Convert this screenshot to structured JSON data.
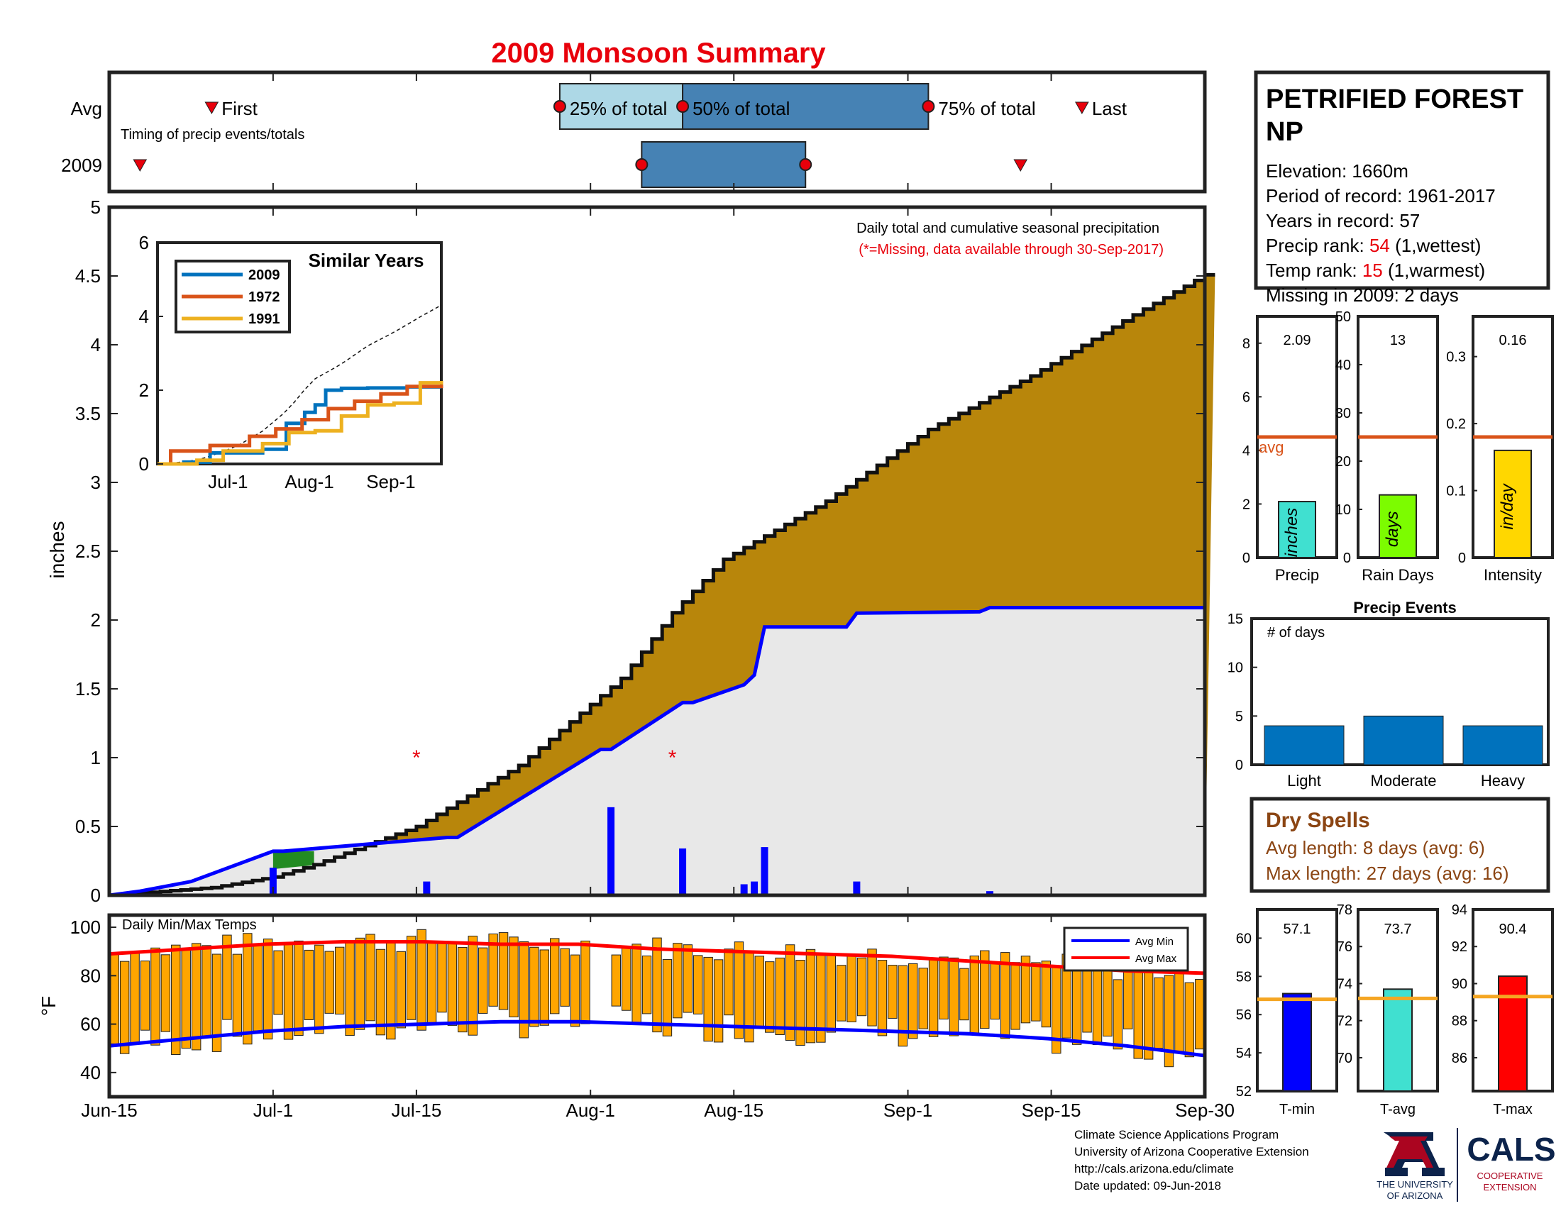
{
  "title": "2009 Monsoon Summary",
  "timing": {
    "rows": [
      "Avg",
      "2009"
    ],
    "caption": "Timing of precip events/totals",
    "avg": {
      "first": "Jun-25",
      "p25": "Jul-29",
      "p50": "Aug-10",
      "p75": "Sep-3",
      "last": "Sep-18"
    },
    "y2009": {
      "first": "Jun-18",
      "p25": "Aug-6",
      "p50": "Aug-6",
      "p75": "Aug-22",
      "last": "Sep-12"
    },
    "labels": {
      "first": "First",
      "p25": "25% of total",
      "p50": "50% of total",
      "p75": "75% of total",
      "last": "Last"
    }
  },
  "main": {
    "ylabel": "inches",
    "note": "Daily total and cumulative seasonal precipitation",
    "missing_note": "(*=Missing, data available through 30-Sep-2017)",
    "yticks": [
      "0",
      "0.5",
      "1",
      "1.5",
      "2",
      "2.5",
      "3",
      "3.5",
      "4",
      "4.5",
      "5"
    ]
  },
  "xticks": [
    "Jun-15",
    "Jul-1",
    "Jul-15",
    "Aug-1",
    "Aug-15",
    "Sep-1",
    "Sep-15",
    "Sep-30"
  ],
  "inset": {
    "title": "Similar Years",
    "legend": [
      "2009",
      "1972",
      "1991"
    ],
    "yticks": [
      "0",
      "2",
      "4",
      "6"
    ],
    "xticks": [
      "Jul-1",
      "Aug-1",
      "Sep-1"
    ]
  },
  "temps": {
    "title": "Daily Min/Max Temps",
    "ylabel": "°F",
    "yticks": [
      "40",
      "60",
      "80",
      "100"
    ],
    "legend": [
      "Avg Min",
      "Avg Max"
    ]
  },
  "station": {
    "name_line1": "PETRIFIED FOREST",
    "name_line2": "NP",
    "elevation": "Elevation: 1660m",
    "period": "Period of record: 1961-2017",
    "years": "Years in record: 57",
    "precip_rank_label": "Precip rank: ",
    "precip_rank_value": "54",
    "precip_rank_suffix": " (1,wettest)",
    "temp_rank_label": "Temp rank: ",
    "temp_rank_value": "15",
    "temp_rank_suffix": " (1,warmest)",
    "missing": "Missing in 2009: 2 days"
  },
  "bar_panels": {
    "precip": {
      "value": "2.09",
      "unit": "inches",
      "label": "Precip",
      "avg_label": "avg",
      "yticks": [
        "0",
        "2",
        "4",
        "6",
        "8"
      ]
    },
    "raindays": {
      "value": "13",
      "unit": "days",
      "label": "Rain Days",
      "yticks": [
        "0",
        "10",
        "20",
        "30",
        "40",
        "50"
      ]
    },
    "intensity": {
      "value": "0.16",
      "unit": "in/day",
      "label": "Intensity",
      "yticks": [
        "0",
        "0.1",
        "0.2",
        "0.3"
      ]
    }
  },
  "precip_events": {
    "title": "Precip Events",
    "ylabel": "# of days",
    "yticks": [
      "0",
      "5",
      "10",
      "15"
    ],
    "categories": [
      "Light",
      "Moderate",
      "Heavy"
    ]
  },
  "dry_spells": {
    "title": "Dry Spells",
    "avg_length": "Avg length: 8 days (avg: 6)",
    "max_length": "Max length: 27 days (avg: 16)"
  },
  "temp_panels": {
    "tmin": {
      "value": "57.1",
      "label": "T-min",
      "yticks": [
        "52",
        "54",
        "56",
        "58",
        "60"
      ]
    },
    "tavg": {
      "value": "73.7",
      "label": "T-avg",
      "yticks": [
        "70",
        "72",
        "74",
        "76",
        "78"
      ]
    },
    "tmax": {
      "value": "90.4",
      "label": "T-max",
      "yticks": [
        "86",
        "88",
        "90",
        "92",
        "94"
      ]
    }
  },
  "footer": {
    "line1": "Climate Science Applications Program",
    "line2": "University of Arizona Cooperative Extension",
    "line3": "http://cals.arizona.edu/climate",
    "line4": " Date updated: 09-Jun-2018",
    "ua_line1": "THE UNIVERSITY",
    "ua_line2": "OF ARIZONA",
    "cals": "CALS",
    "coop1": "COOPERATIVE",
    "coop2": "EXTENSION"
  },
  "colors": {
    "title": "#e8000b",
    "box_light": "#add8e6",
    "box_dark": "#4682b4",
    "cum_avg": "#b8860b",
    "cum_2009": "#0000ff",
    "grey_fill": "#e8e8e8",
    "excess": "#228b22",
    "temp_bar": "#ffa500",
    "avg_max": "#ff0000",
    "avg_min": "#0000ff",
    "avg_line": "#d95319",
    "precip_bar": "#40e0d0",
    "rain_bar": "#7cfc00",
    "intensity_bar": "#ffd700",
    "event_bar": "#0072bd",
    "dry_spell": "#8b4513",
    "tmin_bar": "#0000ff",
    "tavg_bar": "#40e0d0",
    "tmax_bar": "#ff0000",
    "temp_avg_line": "#f5a623"
  },
  "chart_data": [
    {
      "type": "area",
      "panel": "cumulative precipitation",
      "x_start": "Jun-15",
      "x_end": "Sep-30",
      "ylim": [
        0,
        5
      ],
      "series": [
        {
          "name": "Avg cumulative",
          "x": [
            0,
            10,
            16,
            20,
            30,
            40,
            50,
            55,
            60,
            70,
            80,
            90,
            100,
            108
          ],
          "y": [
            0,
            0.05,
            0.12,
            0.2,
            0.45,
            0.85,
            1.42,
            1.85,
            2.2,
            2.58,
            3.05,
            3.4,
            3.8,
            4.1
          ]
        },
        {
          "name": "2009 cumulative",
          "x": [
            0,
            3,
            8,
            16,
            17,
            33,
            34,
            48,
            49,
            56,
            57,
            62,
            63,
            64,
            65,
            72,
            73,
            85,
            86,
            108
          ],
          "y": [
            0,
            0.03,
            0.1,
            0.32,
            0.32,
            0.42,
            0.42,
            1.06,
            1.06,
            1.4,
            1.4,
            1.53,
            1.6,
            1.95,
            1.95,
            1.95,
            2.05,
            2.06,
            2.09,
            2.09
          ]
        }
      ],
      "daily_bars": {
        "x": [
          16,
          31,
          49,
          56,
          62,
          63,
          64,
          73,
          86
        ],
        "y": [
          0.2,
          0.1,
          0.64,
          0.34,
          0.08,
          0.1,
          0.35,
          0.1,
          0.03
        ]
      },
      "missing_x": [
        22,
        47
      ]
    },
    {
      "type": "line",
      "panel": "similar years",
      "series": [
        {
          "name": "2009",
          "x": [
            0,
            10,
            20,
            40,
            49,
            56,
            60,
            64,
            70,
            80,
            95,
            108
          ],
          "y": [
            0,
            0.05,
            0.3,
            0.4,
            1.1,
            1.4,
            1.6,
            2.0,
            2.05,
            2.06,
            2.09,
            2.09
          ]
        },
        {
          "name": "1972",
          "x": [
            0,
            5,
            20,
            35,
            45,
            55,
            65,
            75,
            85,
            95,
            108
          ],
          "y": [
            0,
            0.35,
            0.5,
            0.75,
            0.95,
            1.2,
            1.5,
            1.7,
            1.9,
            2.1,
            2.15
          ]
        },
        {
          "name": "1991",
          "x": [
            0,
            15,
            25,
            40,
            50,
            60,
            70,
            80,
            90,
            100,
            108
          ],
          "y": [
            0,
            0.1,
            0.35,
            0.55,
            0.85,
            0.9,
            1.3,
            1.6,
            1.65,
            2.2,
            2.25
          ]
        }
      ],
      "ylim": [
        0,
        6
      ]
    },
    {
      "type": "bar",
      "panel": "daily temps",
      "ylim": [
        30,
        105
      ],
      "avg_max": [
        89,
        91,
        93,
        94,
        94,
        93,
        93,
        91,
        90,
        89,
        88,
        86,
        84,
        82,
        81
      ],
      "avg_min": [
        51,
        54,
        57,
        59,
        60,
        61,
        61,
        60,
        59,
        58,
        57,
        56,
        54,
        51,
        47
      ]
    },
    {
      "type": "bar",
      "panel": "season totals",
      "categories": [
        "Precip",
        "Rain Days",
        "Intensity"
      ],
      "values": [
        2.09,
        13,
        0.16
      ],
      "averages": [
        4.5,
        25,
        0.18
      ]
    },
    {
      "type": "bar",
      "panel": "Precip Events",
      "categories": [
        "Light",
        "Moderate",
        "Heavy"
      ],
      "values": [
        4,
        5,
        4
      ],
      "ylim": [
        0,
        15
      ]
    },
    {
      "type": "bar",
      "panel": "temperature",
      "categories": [
        "T-min",
        "T-avg",
        "T-max"
      ],
      "values": [
        57.1,
        73.7,
        90.4
      ],
      "averages": [
        56.8,
        73.2,
        89.3
      ]
    }
  ]
}
